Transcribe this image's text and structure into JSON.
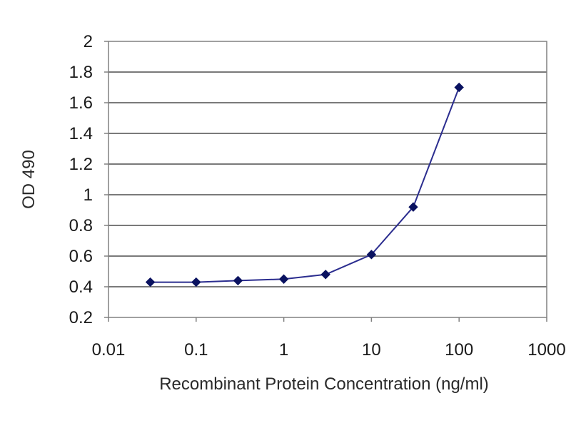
{
  "chart_data": {
    "type": "line",
    "title": "",
    "xlabel": "Recombinant Protein Concentration (ng/ml)",
    "ylabel": "OD 490",
    "x_scale": "log",
    "xlim": [
      0.01,
      1000
    ],
    "ylim": [
      0.2,
      2
    ],
    "x_ticks": [
      "0.01",
      "0.1",
      "1",
      "10",
      "100",
      "1000"
    ],
    "y_ticks": [
      "0.2",
      "0.4",
      "0.6",
      "0.8",
      "1",
      "1.2",
      "1.4",
      "1.6",
      "1.8",
      "2"
    ],
    "grid": "horizontal",
    "legend": "none",
    "series": [
      {
        "x": [
          0.03,
          0.1,
          0.3,
          1,
          3,
          10,
          30,
          100
        ],
        "y": [
          0.43,
          0.43,
          0.44,
          0.45,
          0.48,
          0.61,
          0.92,
          1.7
        ],
        "color": "#2b2d8f",
        "marker": "diamond"
      }
    ]
  }
}
